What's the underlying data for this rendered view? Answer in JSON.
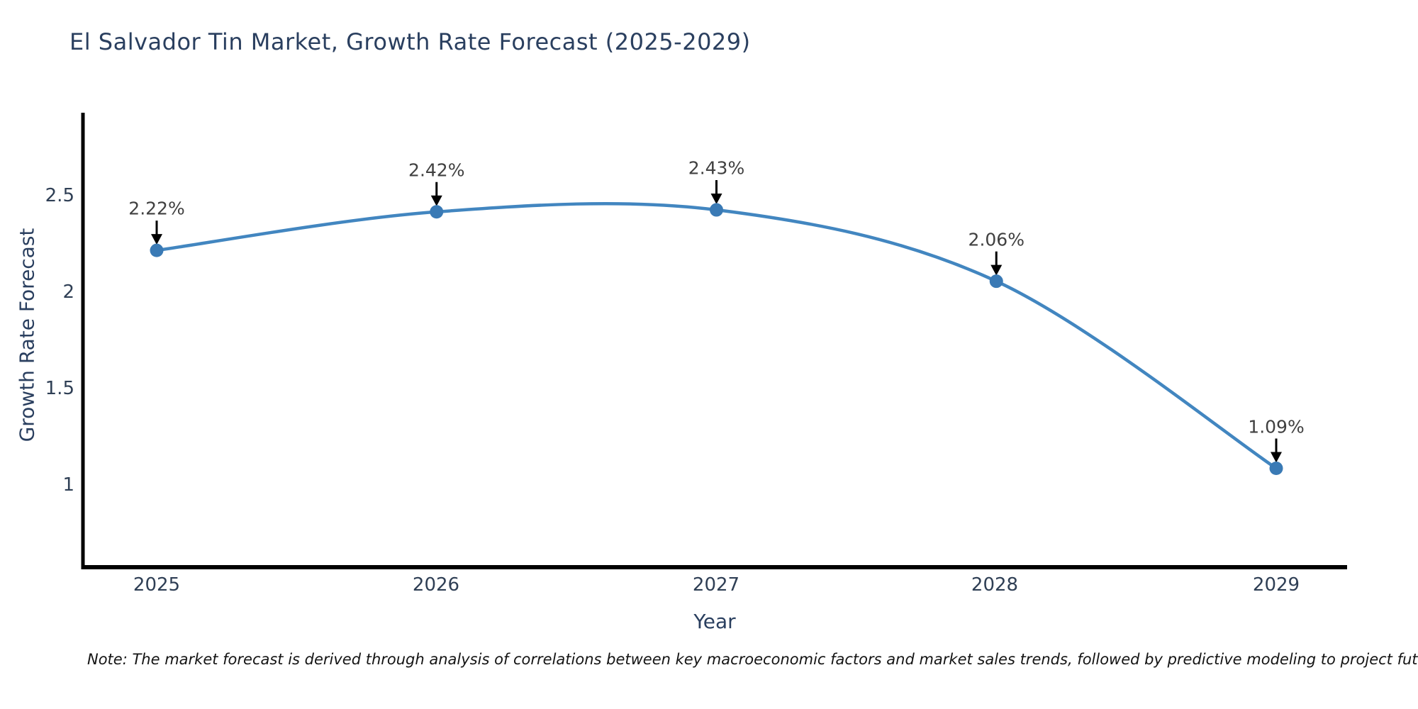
{
  "title": "El Salvador Tin Market, Growth Rate Forecast (2025-2029)",
  "note": "Note: The market forecast is derived through analysis of correlations between key macroeconomic factors and market sales trends, followed by predictive modeling to project future sales",
  "chart_data": {
    "type": "line",
    "title": "El Salvador Tin Market, Growth Rate Forecast (2025-2029)",
    "xlabel": "Year",
    "ylabel": "Growth Rate Forecast",
    "x": [
      2025,
      2026,
      2027,
      2028,
      2029
    ],
    "series": [
      {
        "name": "Growth Rate Forecast",
        "values": [
          2.22,
          2.42,
          2.43,
          2.06,
          1.09
        ]
      }
    ],
    "point_labels": [
      "2.22%",
      "2.42%",
      "2.43%",
      "2.06%",
      "1.09%"
    ],
    "xticks": [
      "2025",
      "2026",
      "2027",
      "2028",
      "2029"
    ],
    "yticks": [
      "2.5",
      "2",
      "1.5",
      "1"
    ],
    "ytick_values": [
      2.5,
      2.0,
      1.5,
      1.0
    ],
    "xlim": [
      2024.74,
      2029.25
    ],
    "ylim": [
      0.577,
      2.93
    ],
    "grid": false,
    "legend": "none",
    "line_shape": "spline",
    "line_color": "#4286c0",
    "marker_color": "#3a7ab5",
    "annotation_arrow_color": "#000000",
    "annotation_text_color": "#404040",
    "axis_color": "#000000"
  }
}
